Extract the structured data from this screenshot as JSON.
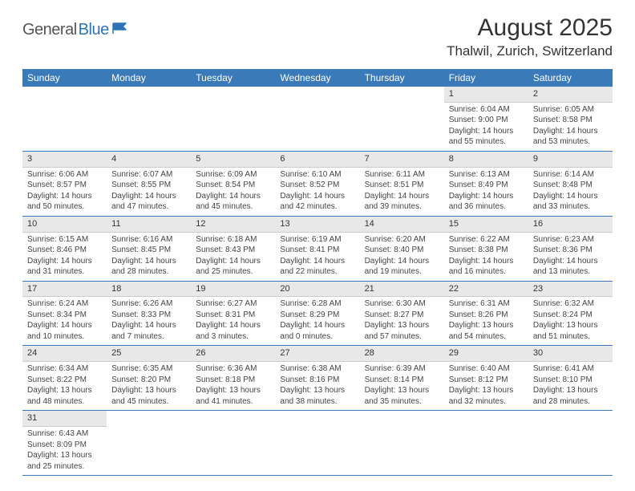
{
  "logo": {
    "part1": "General",
    "part2": "Blue"
  },
  "title": "August 2025",
  "location": "Thalwil, Zurich, Switzerland",
  "colors": {
    "header_bg": "#3a7ab8",
    "header_text": "#ffffff",
    "daynum_bg": "#e8e8e8",
    "row_divider": "#3a7ab8",
    "brand_blue": "#2e73b8",
    "brand_gray": "#555555"
  },
  "day_header_fontsize": 12,
  "cell_fontsize": 10,
  "weekdays": [
    "Sunday",
    "Monday",
    "Tuesday",
    "Wednesday",
    "Thursday",
    "Friday",
    "Saturday"
  ],
  "weeks": [
    [
      null,
      null,
      null,
      null,
      null,
      {
        "n": "1",
        "sr": "Sunrise: 6:04 AM",
        "ss": "Sunset: 9:00 PM",
        "d1": "Daylight: 14 hours",
        "d2": "and 55 minutes."
      },
      {
        "n": "2",
        "sr": "Sunrise: 6:05 AM",
        "ss": "Sunset: 8:58 PM",
        "d1": "Daylight: 14 hours",
        "d2": "and 53 minutes."
      }
    ],
    [
      {
        "n": "3",
        "sr": "Sunrise: 6:06 AM",
        "ss": "Sunset: 8:57 PM",
        "d1": "Daylight: 14 hours",
        "d2": "and 50 minutes."
      },
      {
        "n": "4",
        "sr": "Sunrise: 6:07 AM",
        "ss": "Sunset: 8:55 PM",
        "d1": "Daylight: 14 hours",
        "d2": "and 47 minutes."
      },
      {
        "n": "5",
        "sr": "Sunrise: 6:09 AM",
        "ss": "Sunset: 8:54 PM",
        "d1": "Daylight: 14 hours",
        "d2": "and 45 minutes."
      },
      {
        "n": "6",
        "sr": "Sunrise: 6:10 AM",
        "ss": "Sunset: 8:52 PM",
        "d1": "Daylight: 14 hours",
        "d2": "and 42 minutes."
      },
      {
        "n": "7",
        "sr": "Sunrise: 6:11 AM",
        "ss": "Sunset: 8:51 PM",
        "d1": "Daylight: 14 hours",
        "d2": "and 39 minutes."
      },
      {
        "n": "8",
        "sr": "Sunrise: 6:13 AM",
        "ss": "Sunset: 8:49 PM",
        "d1": "Daylight: 14 hours",
        "d2": "and 36 minutes."
      },
      {
        "n": "9",
        "sr": "Sunrise: 6:14 AM",
        "ss": "Sunset: 8:48 PM",
        "d1": "Daylight: 14 hours",
        "d2": "and 33 minutes."
      }
    ],
    [
      {
        "n": "10",
        "sr": "Sunrise: 6:15 AM",
        "ss": "Sunset: 8:46 PM",
        "d1": "Daylight: 14 hours",
        "d2": "and 31 minutes."
      },
      {
        "n": "11",
        "sr": "Sunrise: 6:16 AM",
        "ss": "Sunset: 8:45 PM",
        "d1": "Daylight: 14 hours",
        "d2": "and 28 minutes."
      },
      {
        "n": "12",
        "sr": "Sunrise: 6:18 AM",
        "ss": "Sunset: 8:43 PM",
        "d1": "Daylight: 14 hours",
        "d2": "and 25 minutes."
      },
      {
        "n": "13",
        "sr": "Sunrise: 6:19 AM",
        "ss": "Sunset: 8:41 PM",
        "d1": "Daylight: 14 hours",
        "d2": "and 22 minutes."
      },
      {
        "n": "14",
        "sr": "Sunrise: 6:20 AM",
        "ss": "Sunset: 8:40 PM",
        "d1": "Daylight: 14 hours",
        "d2": "and 19 minutes."
      },
      {
        "n": "15",
        "sr": "Sunrise: 6:22 AM",
        "ss": "Sunset: 8:38 PM",
        "d1": "Daylight: 14 hours",
        "d2": "and 16 minutes."
      },
      {
        "n": "16",
        "sr": "Sunrise: 6:23 AM",
        "ss": "Sunset: 8:36 PM",
        "d1": "Daylight: 14 hours",
        "d2": "and 13 minutes."
      }
    ],
    [
      {
        "n": "17",
        "sr": "Sunrise: 6:24 AM",
        "ss": "Sunset: 8:34 PM",
        "d1": "Daylight: 14 hours",
        "d2": "and 10 minutes."
      },
      {
        "n": "18",
        "sr": "Sunrise: 6:26 AM",
        "ss": "Sunset: 8:33 PM",
        "d1": "Daylight: 14 hours",
        "d2": "and 7 minutes."
      },
      {
        "n": "19",
        "sr": "Sunrise: 6:27 AM",
        "ss": "Sunset: 8:31 PM",
        "d1": "Daylight: 14 hours",
        "d2": "and 3 minutes."
      },
      {
        "n": "20",
        "sr": "Sunrise: 6:28 AM",
        "ss": "Sunset: 8:29 PM",
        "d1": "Daylight: 14 hours",
        "d2": "and 0 minutes."
      },
      {
        "n": "21",
        "sr": "Sunrise: 6:30 AM",
        "ss": "Sunset: 8:27 PM",
        "d1": "Daylight: 13 hours",
        "d2": "and 57 minutes."
      },
      {
        "n": "22",
        "sr": "Sunrise: 6:31 AM",
        "ss": "Sunset: 8:26 PM",
        "d1": "Daylight: 13 hours",
        "d2": "and 54 minutes."
      },
      {
        "n": "23",
        "sr": "Sunrise: 6:32 AM",
        "ss": "Sunset: 8:24 PM",
        "d1": "Daylight: 13 hours",
        "d2": "and 51 minutes."
      }
    ],
    [
      {
        "n": "24",
        "sr": "Sunrise: 6:34 AM",
        "ss": "Sunset: 8:22 PM",
        "d1": "Daylight: 13 hours",
        "d2": "and 48 minutes."
      },
      {
        "n": "25",
        "sr": "Sunrise: 6:35 AM",
        "ss": "Sunset: 8:20 PM",
        "d1": "Daylight: 13 hours",
        "d2": "and 45 minutes."
      },
      {
        "n": "26",
        "sr": "Sunrise: 6:36 AM",
        "ss": "Sunset: 8:18 PM",
        "d1": "Daylight: 13 hours",
        "d2": "and 41 minutes."
      },
      {
        "n": "27",
        "sr": "Sunrise: 6:38 AM",
        "ss": "Sunset: 8:16 PM",
        "d1": "Daylight: 13 hours",
        "d2": "and 38 minutes."
      },
      {
        "n": "28",
        "sr": "Sunrise: 6:39 AM",
        "ss": "Sunset: 8:14 PM",
        "d1": "Daylight: 13 hours",
        "d2": "and 35 minutes."
      },
      {
        "n": "29",
        "sr": "Sunrise: 6:40 AM",
        "ss": "Sunset: 8:12 PM",
        "d1": "Daylight: 13 hours",
        "d2": "and 32 minutes."
      },
      {
        "n": "30",
        "sr": "Sunrise: 6:41 AM",
        "ss": "Sunset: 8:10 PM",
        "d1": "Daylight: 13 hours",
        "d2": "and 28 minutes."
      }
    ],
    [
      {
        "n": "31",
        "sr": "Sunrise: 6:43 AM",
        "ss": "Sunset: 8:09 PM",
        "d1": "Daylight: 13 hours",
        "d2": "and 25 minutes."
      },
      null,
      null,
      null,
      null,
      null,
      null
    ]
  ]
}
